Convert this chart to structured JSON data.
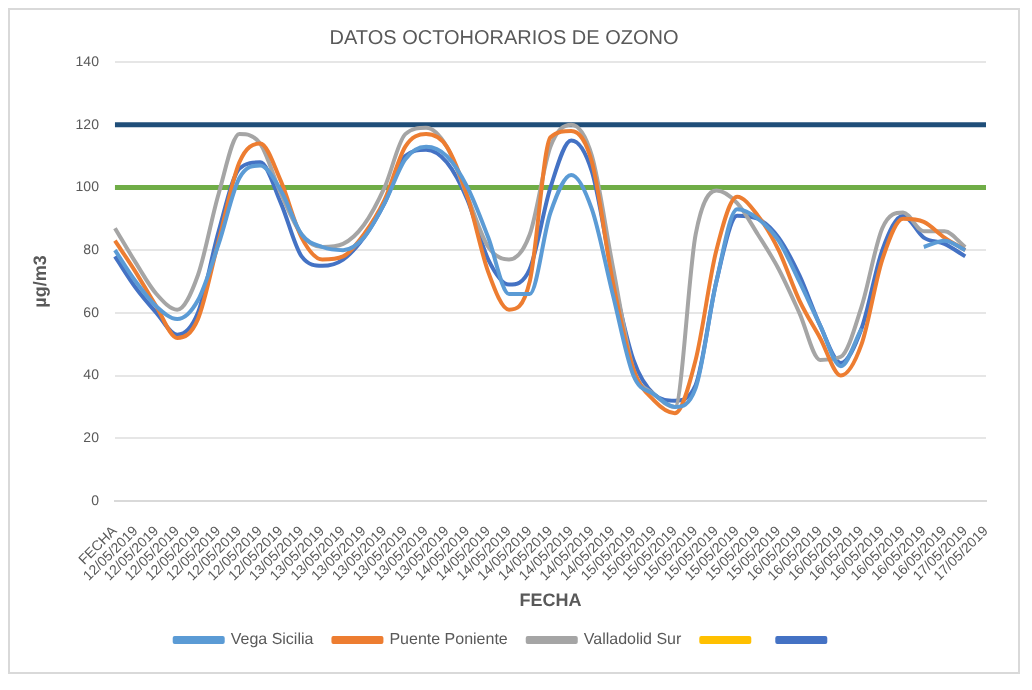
{
  "chart_data": {
    "type": "line",
    "title": "DATOS OCTOHORARIOS DE OZONO",
    "xlabel": "FECHA",
    "ylabel": "µg/m3",
    "categories": [
      "FECHA",
      "12/05/2019",
      "12/05/2019",
      "12/05/2019",
      "12/05/2019",
      "12/05/2019",
      "12/05/2019",
      "12/05/2019",
      "12/05/2019",
      "13/05/2019",
      "13/05/2019",
      "13/05/2019",
      "13/05/2019",
      "13/05/2019",
      "13/05/2019",
      "13/05/2019",
      "13/05/2019",
      "14/05/2019",
      "14/05/2019",
      "14/05/2019",
      "14/05/2019",
      "14/05/2019",
      "14/05/2019",
      "14/05/2019",
      "14/05/2019",
      "15/05/2019",
      "15/05/2019",
      "15/05/2019",
      "15/05/2019",
      "15/05/2019",
      "15/05/2019",
      "15/05/2019",
      "15/05/2019",
      "16/05/2019",
      "16/05/2019",
      "16/05/2019",
      "16/05/2019",
      "16/05/2019",
      "16/05/2019",
      "16/05/2019",
      "16/05/2019",
      "17/05/2019",
      "17/05/2019"
    ],
    "series": [
      {
        "name": "Vega Sicilia",
        "color": "#5b9bd5",
        "values": [
          80,
          70,
          62,
          58,
          64,
          82,
          103,
          107,
          99,
          85,
          81,
          80,
          84,
          95,
          109,
          113,
          110,
          100,
          84,
          66,
          66,
          92,
          104,
          93,
          66,
          40,
          34,
          30,
          36,
          70,
          93,
          90,
          83,
          70,
          56,
          43,
          55,
          null,
          null,
          81,
          83,
          80,
          null
        ]
      },
      {
        "name": "Puente Poniente",
        "color": "#ed7d31",
        "values": [
          83,
          73,
          62,
          52,
          58,
          83,
          108,
          114,
          102,
          84,
          77,
          78,
          85,
          96,
          113,
          117,
          113,
          97,
          73,
          61,
          70,
          116,
          118,
          108,
          70,
          42,
          32,
          28,
          45,
          80,
          97,
          91,
          80,
          64,
          52,
          40,
          50,
          77,
          90,
          89,
          84,
          80,
          null
        ]
      },
      {
        "name": "Valladolid Sur",
        "color": "#a5a5a5",
        "values": [
          87,
          76,
          66,
          61,
          72,
          98,
          117,
          114,
          98,
          85,
          81,
          82,
          88,
          100,
          117,
          119,
          113,
          97,
          81,
          77,
          85,
          113,
          120,
          110,
          75,
          42,
          34,
          30,
          85,
          99,
          95,
          85,
          74,
          60,
          45,
          46,
          62,
          87,
          92,
          86,
          86,
          81,
          null
        ]
      },
      {
        "color": "#ffc000",
        "values": [
          null,
          null,
          null,
          null,
          null,
          null,
          null,
          null,
          null,
          null,
          null,
          null,
          null,
          null,
          null,
          null,
          null,
          null,
          null,
          null,
          null,
          null,
          null,
          null,
          null,
          null,
          null,
          null,
          null,
          null,
          null,
          null,
          null,
          null,
          null,
          null,
          null,
          null,
          null,
          null,
          null,
          null,
          null
        ]
      },
      {
        "color": "#4472c4",
        "values": [
          78,
          68,
          60,
          53,
          60,
          86,
          106,
          108,
          95,
          78,
          75,
          77,
          84,
          95,
          110,
          112,
          108,
          96,
          77,
          69,
          74,
          100,
          115,
          105,
          72,
          45,
          34,
          32,
          37,
          70,
          91,
          90,
          84,
          72,
          56,
          44,
          55,
          80,
          91,
          84,
          82,
          78,
          null
        ]
      }
    ],
    "ylim": [
      0,
      140
    ],
    "yticks": [
      0,
      20,
      40,
      60,
      80,
      100,
      120,
      140
    ],
    "grid": "y",
    "legend": "bottom",
    "marker": "none",
    "line_style": "solid",
    "ref_lines": [
      {
        "axis": "y",
        "value": 120,
        "color": "#1f4e79"
      },
      {
        "axis": "y",
        "value": 100,
        "color": "#70ad47"
      }
    ]
  }
}
